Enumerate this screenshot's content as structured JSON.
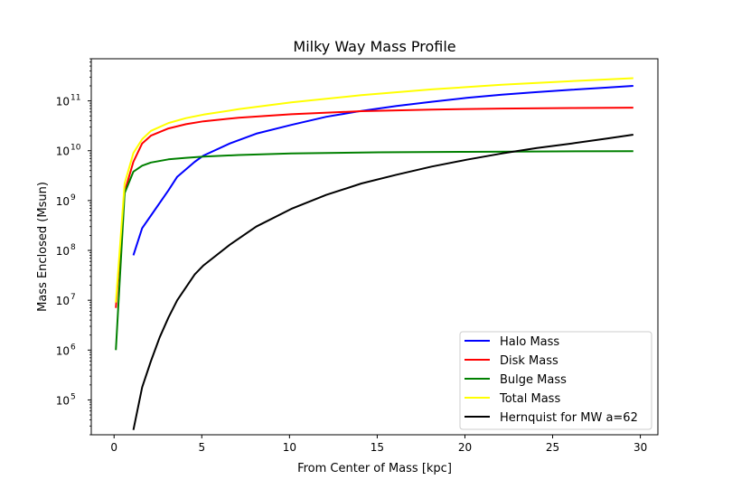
{
  "chart_data": {
    "type": "line",
    "title": "Milky Way Mass Profile",
    "xlabel": "From Center of Mass [kpc]",
    "ylabel": "Mass Enclosed (Msun)",
    "xlim": [
      -1.3,
      31.0
    ],
    "ylim": [
      20000,
      700000000000
    ],
    "yscale": "log",
    "xticks": [
      0,
      5,
      10,
      15,
      20,
      25,
      30
    ],
    "yticks": [
      {
        "value": 100000,
        "base": "10",
        "exp": "5"
      },
      {
        "value": 1000000,
        "base": "10",
        "exp": "6"
      },
      {
        "value": 10000000,
        "base": "10",
        "exp": "7"
      },
      {
        "value": 100000000,
        "base": "10",
        "exp": "8"
      },
      {
        "value": 1000000000,
        "base": "10",
        "exp": "9"
      },
      {
        "value": 10000000000,
        "base": "10",
        "exp": "10"
      },
      {
        "value": 100000000000,
        "base": "10",
        "exp": "11"
      }
    ],
    "legend_position": "lower-right",
    "series": [
      {
        "name": "Halo Mass",
        "color": "#0000ff",
        "x": [
          1.1,
          1.6,
          2.1,
          3.1,
          3.6,
          4.6,
          5.1,
          6.6,
          8.1,
          10.1,
          12.1,
          14.1,
          16.1,
          18.1,
          20.1,
          22.1,
          24.1,
          26.1,
          28.1,
          29.6
        ],
        "y": [
          80000000,
          280000000,
          500000000,
          1600000000,
          3000000000,
          6000000000,
          8000000000,
          14000000000,
          22000000000,
          33000000000,
          48000000000,
          63000000000,
          79000000000,
          96000000000,
          115000000000,
          133000000000,
          150000000000,
          167000000000,
          185000000000,
          200000000000
        ]
      },
      {
        "name": "Disk Mass",
        "color": "#ff0000",
        "x": [
          0.1,
          0.6,
          1.1,
          1.6,
          2.1,
          3.1,
          4.1,
          5.1,
          7.1,
          10.1,
          14.1,
          18.1,
          22.1,
          26.1,
          29.6
        ],
        "y": [
          7000000,
          1500000000,
          6000000000,
          14000000000,
          20000000000,
          28000000000,
          34000000000,
          39000000000,
          46000000000,
          54000000000,
          62000000000,
          67000000000,
          70000000000,
          72000000000,
          73000000000
        ]
      },
      {
        "name": "Bulge Mass",
        "color": "#008000",
        "x": [
          0.1,
          0.6,
          1.1,
          1.6,
          2.1,
          3.1,
          4.1,
          5.1,
          7.1,
          10.1,
          15.1,
          20.1,
          25.1,
          29.6
        ],
        "y": [
          1000000,
          1400000000,
          3800000000,
          5000000000,
          5800000000,
          6700000000,
          7200000000,
          7600000000,
          8200000000,
          8800000000,
          9300000000,
          9500000000,
          9700000000,
          9800000000
        ]
      },
      {
        "name": "Total Mass",
        "color": "#ffff00",
        "x": [
          0.1,
          0.6,
          1.1,
          1.6,
          2.1,
          3.1,
          4.1,
          5.1,
          7.1,
          10.1,
          14.1,
          18.1,
          22.1,
          26.1,
          29.6
        ],
        "y": [
          9000000,
          2200000000,
          9000000000,
          17000000000,
          25000000000,
          36000000000,
          45000000000,
          53000000000,
          68000000000,
          93000000000,
          130000000000,
          170000000000,
          210000000000,
          250000000000,
          285000000000
        ]
      },
      {
        "name": "Hernquist for MW a=62",
        "color": "#000000",
        "x": [
          1.1,
          1.6,
          2.1,
          2.6,
          3.1,
          3.6,
          4.6,
          5.1,
          6.6,
          8.1,
          10.1,
          12.1,
          14.1,
          16.1,
          18.1,
          20.1,
          22.1,
          24.1,
          26.1,
          28.1,
          29.6
        ],
        "y": [
          25000,
          180000,
          600000,
          1800000,
          4500000,
          10000000,
          33000000,
          50000000,
          130000000,
          300000000,
          680000000,
          1300000000,
          2200000000,
          3300000000,
          4800000000,
          6600000000,
          8800000000,
          11300000000,
          14000000000,
          17500000000,
          21000000000
        ]
      }
    ]
  }
}
